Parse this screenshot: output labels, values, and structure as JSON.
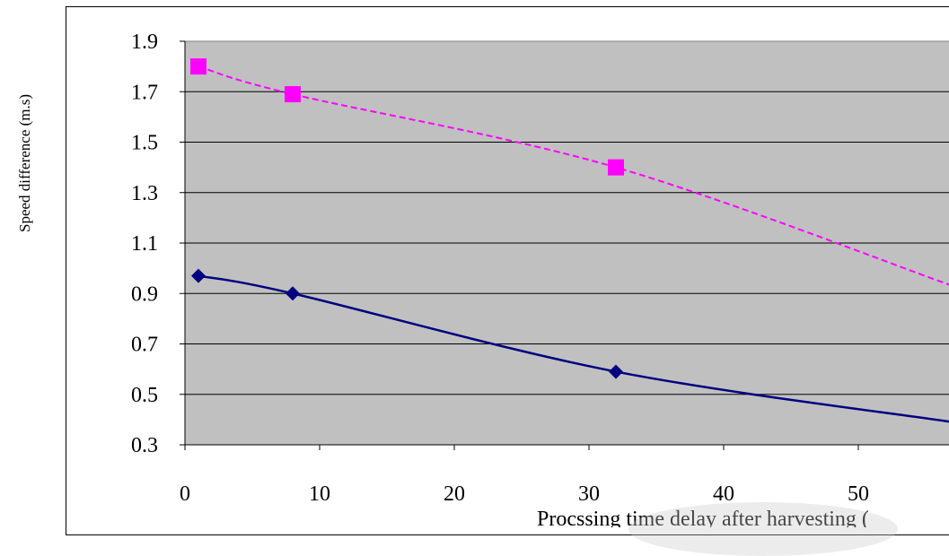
{
  "chart_data": {
    "type": "line",
    "xlabel": "Procssing time delay after harvesting (",
    "ylabel": "Speed difference (m.s)",
    "xlim": [
      0,
      57
    ],
    "ylim": [
      0.3,
      1.9
    ],
    "x_ticks": [
      "0",
      "10",
      "20",
      "30",
      "40",
      "50"
    ],
    "y_ticks": [
      "1.9",
      "1.7",
      "1.5",
      "1.3",
      "1.1",
      "0.9",
      "0.7",
      "0.5",
      "0.3"
    ],
    "grid": "horizontal",
    "plot_background": "#c0c0c0",
    "series": [
      {
        "style": "dashed",
        "marker": "square",
        "color": "#ff00ff",
        "x": [
          1,
          8,
          32,
          57
        ],
        "y": [
          1.8,
          1.69,
          1.4,
          0.93
        ],
        "marked": [
          true,
          true,
          true,
          false
        ]
      },
      {
        "style": "solid",
        "marker": "diamond",
        "color": "#000080",
        "x": [
          1,
          8,
          32,
          57
        ],
        "y": [
          0.97,
          0.9,
          0.59,
          0.39
        ],
        "marked": [
          true,
          true,
          true,
          false
        ]
      }
    ]
  }
}
